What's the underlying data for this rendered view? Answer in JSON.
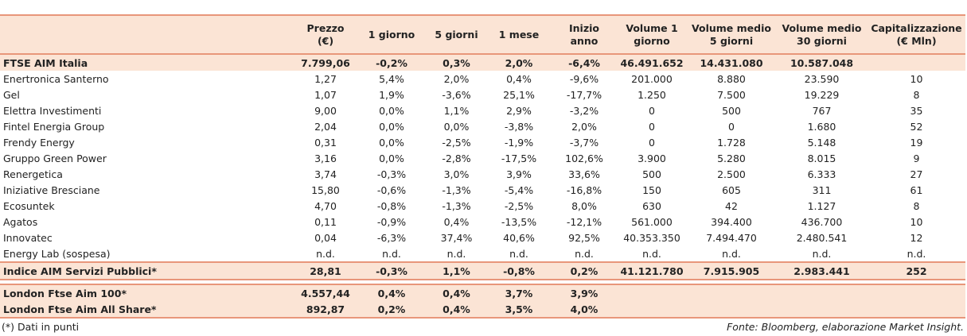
{
  "columns": [
    "",
    "Prezzo\n(€)",
    "1 giorno",
    "5 giorni",
    "1 mese",
    "Inizio anno",
    "Volume 1\ngiorno",
    "Volume medio\n5 giorni",
    "Volume medio\n30 giorni",
    "Capitalizzazione\n(€ Mln)"
  ],
  "header": {
    "prezzo": "Prezzo",
    "prezzo_unit": "(€)",
    "g1": "1 giorno",
    "g5": "5 giorni",
    "m1": "1 mese",
    "ia": "Inizio anno",
    "v1_a": "Volume 1",
    "v1_b": "giorno",
    "v5_a": "Volume medio",
    "v5_b": "5 giorni",
    "v30_a": "Volume medio",
    "v30_b": "30 giorni",
    "cap_a": "Capitalizzazione",
    "cap_b": "(€ Mln)"
  },
  "index_row": [
    "FTSE AIM Italia",
    "7.799,06",
    "-0,2%",
    "0,3%",
    "2,0%",
    "-6,4%",
    "46.491.652",
    "14.431.080",
    "10.587.048",
    ""
  ],
  "rows": [
    [
      "Enertronica Santerno",
      "1,27",
      "5,4%",
      "2,0%",
      "0,4%",
      "-9,6%",
      "201.000",
      "8.880",
      "23.590",
      "10"
    ],
    [
      "Gel",
      "1,07",
      "1,9%",
      "-3,6%",
      "25,1%",
      "-17,7%",
      "1.250",
      "7.500",
      "19.229",
      "8"
    ],
    [
      "Elettra Investimenti",
      "9,00",
      "0,0%",
      "1,1%",
      "2,9%",
      "-3,2%",
      "0",
      "500",
      "767",
      "35"
    ],
    [
      "Fintel Energia Group",
      "2,04",
      "0,0%",
      "0,0%",
      "-3,8%",
      "2,0%",
      "0",
      "0",
      "1.680",
      "52"
    ],
    [
      "Frendy Energy",
      "0,31",
      "0,0%",
      "-2,5%",
      "-1,9%",
      "-3,7%",
      "0",
      "1.728",
      "5.148",
      "19"
    ],
    [
      "Gruppo Green Power",
      "3,16",
      "0,0%",
      "-2,8%",
      "-17,5%",
      "102,6%",
      "3.900",
      "5.280",
      "8.015",
      "9"
    ],
    [
      "Renergetica",
      "3,74",
      "-0,3%",
      "3,0%",
      "3,9%",
      "33,6%",
      "500",
      "2.500",
      "6.333",
      "27"
    ],
    [
      "Iniziative Bresciane",
      "15,80",
      "-0,6%",
      "-1,3%",
      "-5,4%",
      "-16,8%",
      "150",
      "605",
      "311",
      "61"
    ],
    [
      "Ecosuntek",
      "4,70",
      "-0,8%",
      "-1,3%",
      "-2,5%",
      "8,0%",
      "630",
      "42",
      "1.127",
      "8"
    ],
    [
      "Agatos",
      "0,11",
      "-0,9%",
      "0,4%",
      "-13,5%",
      "-12,1%",
      "561.000",
      "394.400",
      "436.700",
      "10"
    ],
    [
      "Innovatec",
      "0,04",
      "-6,3%",
      "37,4%",
      "40,6%",
      "92,5%",
      "40.353.350",
      "7.494.470",
      "2.480.541",
      "12"
    ],
    [
      "Energy Lab (sospesa)",
      "n.d.",
      "n.d.",
      "n.d.",
      "n.d.",
      "n.d.",
      "n.d.",
      "n.d.",
      "n.d.",
      "n.d."
    ]
  ],
  "aim_row": [
    "Indice AIM Servizi Pubblici*",
    "28,81",
    "-0,3%",
    "1,1%",
    "-0,8%",
    "0,2%",
    "41.121.780",
    "7.915.905",
    "2.983.441",
    "252"
  ],
  "london_rows": [
    [
      "London Ftse Aim 100*",
      "4.557,44",
      "0,4%",
      "0,4%",
      "3,7%",
      "3,9%",
      "",
      "",
      "",
      ""
    ],
    [
      "London Ftse Aim All Share*",
      "892,87",
      "0,2%",
      "0,4%",
      "3,5%",
      "4,0%",
      "",
      "",
      "",
      ""
    ]
  ],
  "footnote": "(*) Dati in punti",
  "source": "Fonte: Bloomberg, elaborazione Market Insight."
}
